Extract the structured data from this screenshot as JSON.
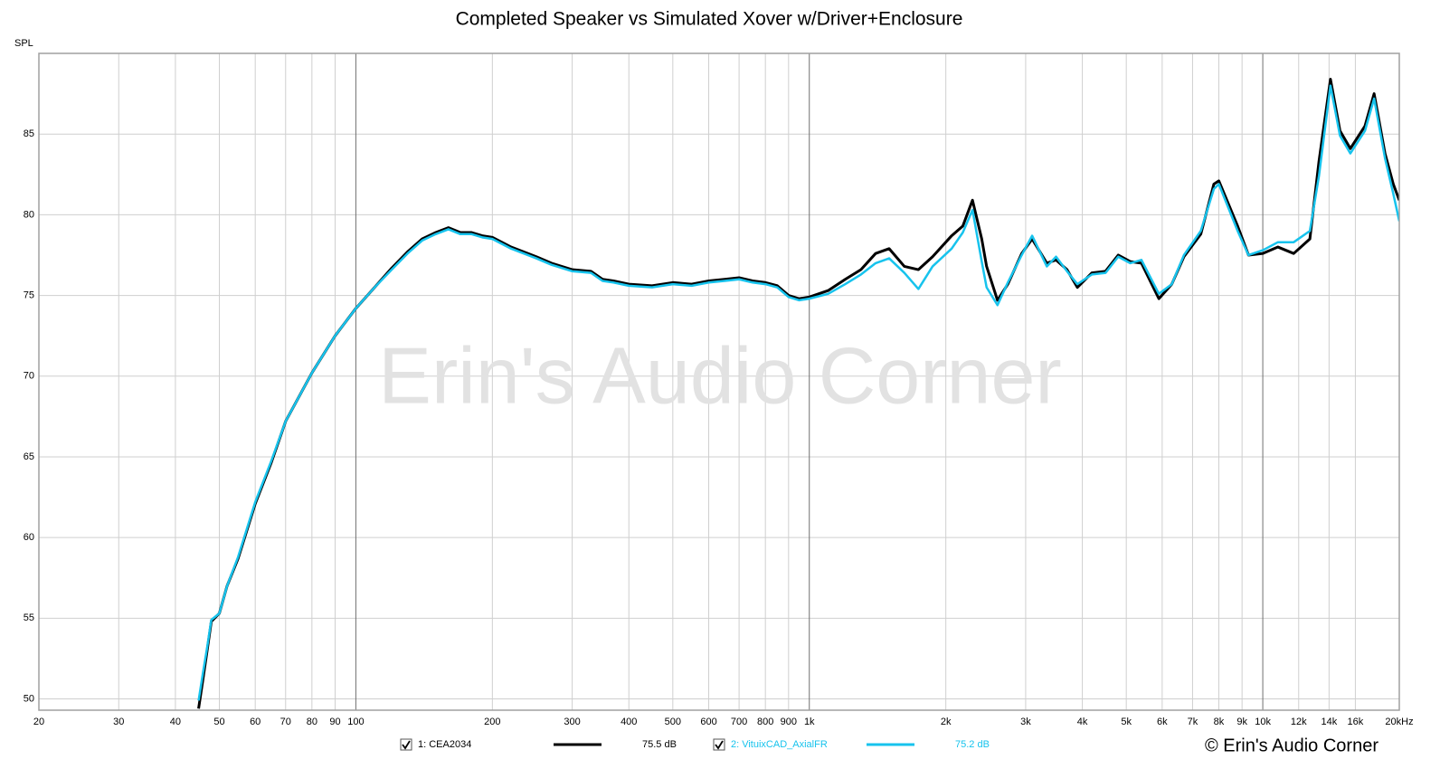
{
  "chart_data": {
    "type": "line",
    "title": "Completed Speaker vs Simulated Xover w/Driver+Enclosure",
    "y_label": "SPL",
    "x_scale": "log",
    "grid": true,
    "xlim": [
      20,
      20000
    ],
    "ylim": [
      49.3,
      90
    ],
    "xticks": [
      20,
      30,
      40,
      50,
      60,
      70,
      80,
      90,
      100,
      200,
      300,
      400,
      500,
      600,
      700,
      800,
      900,
      {
        "value": 1000,
        "label": "1k"
      },
      {
        "value": 2000,
        "label": "2k"
      },
      {
        "value": 3000,
        "label": "3k"
      },
      {
        "value": 4000,
        "label": "4k"
      },
      {
        "value": 5000,
        "label": "5k"
      },
      {
        "value": 6000,
        "label": "6k"
      },
      {
        "value": 7000,
        "label": "7k"
      },
      {
        "value": 8000,
        "label": "8k"
      },
      {
        "value": 9000,
        "label": "9k"
      },
      {
        "value": 10000,
        "label": "10k"
      },
      {
        "value": 12000,
        "label": "12k"
      },
      {
        "value": 14000,
        "label": "14k"
      },
      {
        "value": 16000,
        "label": "16k"
      },
      {
        "value": 20000,
        "label": "20kHz"
      }
    ],
    "yticks": [
      50,
      55,
      60,
      65,
      70,
      75,
      80,
      85
    ],
    "x": [
      45,
      46,
      47,
      48,
      50,
      52,
      55,
      60,
      65,
      70,
      80,
      90,
      100,
      110,
      120,
      130,
      140,
      150,
      160,
      170,
      180,
      190,
      200,
      220,
      250,
      270,
      300,
      330,
      350,
      370,
      400,
      450,
      500,
      550,
      600,
      650,
      700,
      750,
      800,
      850,
      900,
      950,
      1000,
      1100,
      1200,
      1300,
      1400,
      1500,
      1620,
      1740,
      1870,
      2060,
      2180,
      2290,
      2400,
      2460,
      2600,
      2740,
      2940,
      3100,
      3340,
      3500,
      3700,
      3900,
      4200,
      4500,
      4800,
      5100,
      5400,
      5900,
      6300,
      6700,
      7300,
      7800,
      8000,
      8800,
      9300,
      10000,
      10800,
      11700,
      12700,
      13300,
      14100,
      14800,
      15600,
      16800,
      17600,
      18600,
      19400,
      20000
    ],
    "series": [
      {
        "name": "1: CEA2034",
        "legend_value": "75.5 dB",
        "color": "#000000",
        "values": [
          49.4,
          51.2,
          53.0,
          54.8,
          55.3,
          57.0,
          58.7,
          62.1,
          64.6,
          67.2,
          70.2,
          72.5,
          74.2,
          75.5,
          76.7,
          77.7,
          78.5,
          78.9,
          79.2,
          78.9,
          78.9,
          78.7,
          78.6,
          78.0,
          77.4,
          77.0,
          76.6,
          76.5,
          76.0,
          75.9,
          75.7,
          75.6,
          75.8,
          75.7,
          75.9,
          76.0,
          76.1,
          75.9,
          75.8,
          75.6,
          75.0,
          74.8,
          74.9,
          75.3,
          76.0,
          76.6,
          77.6,
          77.9,
          76.8,
          76.6,
          77.4,
          78.7,
          79.3,
          80.9,
          78.5,
          76.8,
          74.7,
          75.7,
          77.6,
          78.5,
          77.0,
          77.2,
          76.6,
          75.5,
          76.4,
          76.5,
          77.5,
          77.1,
          77.0,
          74.8,
          75.7,
          77.4,
          78.8,
          81.9,
          82.1,
          79.3,
          77.5,
          77.6,
          78.0,
          77.6,
          78.5,
          83.3,
          88.4,
          85.2,
          84.1,
          85.5,
          87.5,
          83.8,
          81.9,
          80.9
        ]
      },
      {
        "name": "2: VituixCAD_AxialFR",
        "legend_value": "75.2 dB",
        "color": "#17c3ed",
        "values": [
          49.9,
          51.6,
          53.2,
          54.9,
          55.3,
          57.0,
          58.8,
          62.2,
          64.7,
          67.2,
          70.2,
          72.5,
          74.2,
          75.5,
          76.6,
          77.6,
          78.4,
          78.8,
          79.1,
          78.8,
          78.8,
          78.6,
          78.5,
          77.9,
          77.3,
          76.9,
          76.5,
          76.4,
          75.9,
          75.8,
          75.6,
          75.5,
          75.7,
          75.6,
          75.8,
          75.9,
          76.0,
          75.8,
          75.7,
          75.5,
          74.9,
          74.7,
          74.8,
          75.1,
          75.7,
          76.3,
          77.0,
          77.3,
          76.4,
          75.4,
          76.8,
          77.9,
          78.9,
          80.3,
          77.1,
          75.5,
          74.4,
          75.8,
          77.5,
          78.7,
          76.8,
          77.4,
          76.5,
          75.7,
          76.3,
          76.4,
          77.4,
          77.0,
          77.2,
          75.1,
          75.7,
          77.5,
          79.0,
          81.6,
          81.9,
          79.0,
          77.5,
          77.8,
          78.3,
          78.3,
          79.0,
          82.4,
          88.0,
          84.9,
          83.8,
          85.2,
          87.2,
          83.5,
          81.3,
          79.6
        ]
      }
    ],
    "watermark": "Erin's Audio Corner",
    "copyright": "© Erin's Audio Corner"
  }
}
